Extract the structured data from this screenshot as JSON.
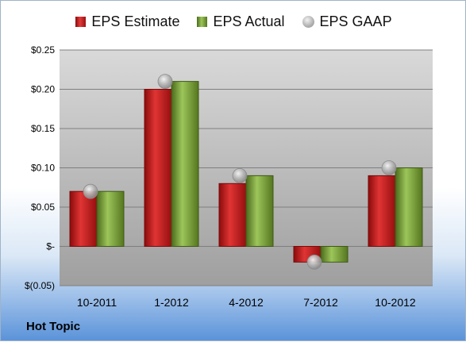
{
  "legend": {
    "estimate": "EPS Estimate",
    "actual": "EPS Actual",
    "gaap": "EPS GAAP"
  },
  "company": "Hot Topic",
  "colors": {
    "estimate": "#c81e1e",
    "actual": "#7fa83e",
    "gaap": "#b8b8b8",
    "plot_bg": "#bdbdbd"
  },
  "chart_data": {
    "type": "bar",
    "categories": [
      "10-2011",
      "1-2012",
      "4-2012",
      "7-2012",
      "10-2012"
    ],
    "series": [
      {
        "name": "EPS Estimate",
        "type": "bar",
        "values": [
          0.07,
          0.2,
          0.08,
          -0.02,
          0.09
        ]
      },
      {
        "name": "EPS Actual",
        "type": "bar",
        "values": [
          0.07,
          0.21,
          0.09,
          -0.02,
          0.1
        ]
      },
      {
        "name": "EPS GAAP",
        "type": "scatter",
        "values": [
          0.07,
          0.21,
          0.09,
          -0.02,
          0.1
        ]
      }
    ],
    "ylim": [
      -0.05,
      0.25
    ],
    "yticks": [
      -0.05,
      0,
      0.05,
      0.1,
      0.15,
      0.2,
      0.25
    ],
    "ytick_labels": [
      "$(0.05)",
      "$-",
      "$0.05",
      "$0.10",
      "$0.15",
      "$0.20",
      "$0.25"
    ],
    "grid": true,
    "legend_position": "top"
  }
}
